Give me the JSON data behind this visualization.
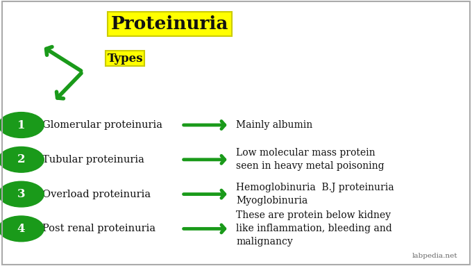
{
  "title": "Proteinuria",
  "subtitle": "Types",
  "green_color": "#1a9a1a",
  "yellow_color": "#ffff00",
  "yellow_border": "#cccc00",
  "text_color": "#111111",
  "rows": [
    {
      "number": "1",
      "left_text": "Glomerular proteinuria",
      "right_text": "Mainly albumin"
    },
    {
      "number": "2",
      "left_text": "Tubular proteinuria",
      "right_text": "Low molecular mass protein\nseen in heavy metal poisoning"
    },
    {
      "number": "3",
      "left_text": "Overload proteinuria",
      "right_text": "Hemoglobinuria  B.J proteinuria\nMyoglobinuria"
    },
    {
      "number": "4",
      "left_text": "Post renal proteinuria",
      "right_text": "These are protein below kidney\nlike inflammation, bleeding and\nmalignancy"
    }
  ],
  "watermark": "labpedia.net",
  "fig_width": 6.8,
  "fig_height": 3.83,
  "dpi": 100
}
